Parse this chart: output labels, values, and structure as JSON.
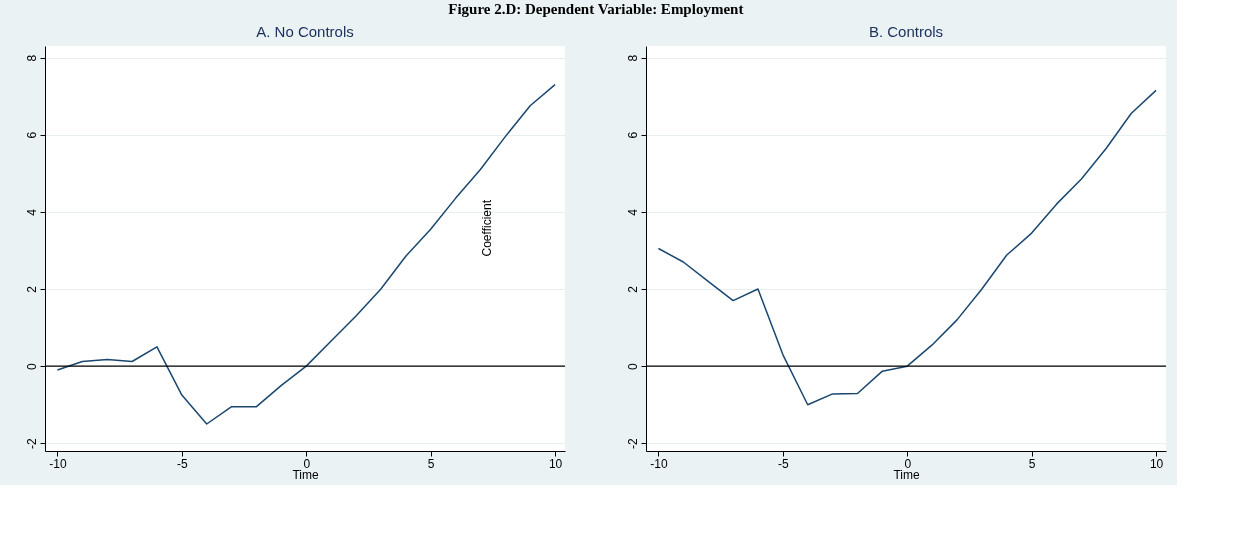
{
  "chart_data": [
    {
      "type": "line",
      "title": "A. No Controls",
      "xlabel": "Time",
      "annotations": [
        "Figure 2.D: Dependent Variable: Employment",
        "Coefficient"
      ],
      "x": [
        -10,
        -9,
        -8,
        -7,
        -6,
        -5,
        -4,
        -3,
        -2,
        -1,
        0,
        1,
        2,
        3,
        4,
        5,
        6,
        7,
        8,
        9,
        10
      ],
      "series": [
        {
          "color": "#1a476f",
          "values": [
            -0.1,
            0.12,
            0.17,
            0.12,
            0.5,
            -0.75,
            -1.5,
            -1.05,
            -1.05,
            -0.5,
            0,
            0.65,
            1.3,
            2.0,
            2.85,
            3.55,
            4.35,
            5.1,
            5.95,
            6.75,
            7.3
          ]
        }
      ],
      "xlim": [
        -10.5,
        10.4
      ],
      "xticks": [
        -10,
        -5,
        0,
        5,
        10
      ],
      "ylim": [
        -2.2,
        8.3
      ],
      "yticks": [
        -2,
        0,
        2,
        4,
        6,
        8
      ],
      "ref_lines": [
        {
          "axis": "y",
          "value": 0,
          "color": "#000000"
        }
      ],
      "grid": "y"
    },
    {
      "type": "line",
      "title": "B. Controls",
      "xlabel": "Time",
      "x": [
        -10,
        -9,
        -8,
        -7,
        -6,
        -5,
        -4,
        -3,
        -2,
        -1,
        0,
        1,
        2,
        3,
        4,
        5,
        6,
        7,
        8,
        9,
        10
      ],
      "series": [
        {
          "color": "#1a476f",
          "values": [
            3.05,
            2.7,
            2.2,
            1.7,
            2.0,
            0.3,
            -1.0,
            -0.72,
            -0.71,
            -0.13,
            0,
            0.55,
            1.2,
            2.0,
            2.88,
            3.45,
            4.2,
            4.85,
            5.65,
            6.55,
            7.15
          ]
        }
      ],
      "xlim": [
        -10.5,
        10.4
      ],
      "xticks": [
        -10,
        -5,
        0,
        5,
        10
      ],
      "ylim": [
        -2.2,
        8.3
      ],
      "yticks": [
        -2,
        0,
        2,
        4,
        6,
        8
      ],
      "ref_lines": [
        {
          "axis": "y",
          "value": 0,
          "color": "#000000"
        }
      ],
      "grid": "y"
    }
  ]
}
